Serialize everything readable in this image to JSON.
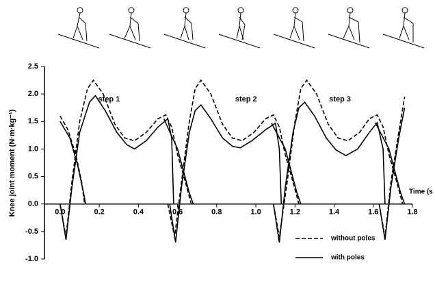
{
  "chart_data": {
    "type": "line",
    "x_label": "Time (s",
    "y_label": "Knee joint moment (N·m·kg⁻¹)",
    "annotations": [
      "step 1",
      "step 2",
      "step 3"
    ],
    "annotation_x": [
      0.25,
      0.95,
      1.43
    ],
    "annotation_y": [
      1.9,
      1.9,
      1.9
    ],
    "xlim": [
      -0.08,
      1.8
    ],
    "ylim": [
      -1,
      2.5
    ],
    "xticks": [
      {
        "value": 0,
        "label": "0.0"
      },
      0.2,
      0.4,
      0.6,
      0.8,
      {
        "value": 1,
        "label": "1.0"
      },
      1.2,
      1.4,
      1.6,
      1.8
    ],
    "yticks": [
      {
        "value": -1,
        "label": "-1.0"
      },
      -0.5,
      {
        "value": 0,
        "label": "0.0"
      },
      0.5,
      {
        "value": 1,
        "label": "1.0"
      },
      1.5,
      {
        "value": 2,
        "label": "2.0"
      },
      2.5
    ],
    "legend": "lower right",
    "series": [
      {
        "name": "without poles",
        "color": "#000",
        "dashed": true,
        "x": [
          0.0,
          0.04,
          0.08,
          0.11,
          0.125,
          null,
          0.0,
          0.03,
          0.06,
          0.1,
          0.14,
          0.17,
          0.22,
          0.28,
          0.33,
          0.38,
          0.44,
          0.5,
          0.54,
          0.57,
          0.6,
          0.64,
          0.67,
          null,
          0.55,
          0.585,
          0.62,
          0.66,
          0.69,
          0.72,
          0.77,
          0.83,
          0.88,
          0.93,
          0.99,
          1.05,
          1.09,
          1.12,
          1.15,
          1.19,
          1.22,
          null,
          1.09,
          1.12,
          1.16,
          1.2,
          1.23,
          1.26,
          1.31,
          1.37,
          1.42,
          1.47,
          1.53,
          1.58,
          1.62,
          1.65,
          1.68,
          1.72,
          1.75,
          null,
          1.63,
          1.66,
          1.69,
          1.73,
          1.76
        ],
        "values": [
          1.6,
          1.35,
          0.9,
          0.4,
          0,
          null,
          0,
          -0.6,
          0.4,
          1.5,
          2.1,
          2.25,
          2.0,
          1.45,
          1.2,
          1.15,
          1.3,
          1.55,
          1.62,
          1.4,
          0.9,
          0.4,
          0,
          null,
          0,
          -0.6,
          0.4,
          1.5,
          2.1,
          2.25,
          2.0,
          1.45,
          1.2,
          1.15,
          1.3,
          1.55,
          1.62,
          1.4,
          0.9,
          0.4,
          0,
          null,
          0,
          -0.6,
          0.4,
          1.5,
          2.1,
          2.25,
          2.0,
          1.45,
          1.2,
          1.15,
          1.3,
          1.55,
          1.62,
          1.4,
          0.9,
          0.4,
          0,
          null,
          0,
          -0.6,
          0.4,
          1.3,
          1.95
        ]
      },
      {
        "name": "with poles",
        "color": "#000",
        "dashed": false,
        "x": [
          0.0,
          0.05,
          0.09,
          0.12,
          0.13,
          null,
          0.0,
          0.03,
          0.06,
          0.1,
          0.15,
          0.18,
          0.23,
          0.29,
          0.34,
          0.38,
          0.44,
          0.5,
          0.55,
          0.57,
          0.58,
          null,
          0.53,
          0.6,
          0.63,
          0.66,
          0.68,
          null,
          0.56,
          0.59,
          0.62,
          0.66,
          0.69,
          0.72,
          0.77,
          0.83,
          0.88,
          0.92,
          0.98,
          1.05,
          1.1,
          1.12,
          1.13,
          null,
          1.08,
          1.15,
          1.18,
          1.21,
          1.23,
          null,
          1.09,
          1.12,
          1.15,
          1.19,
          1.22,
          1.25,
          1.3,
          1.36,
          1.41,
          1.46,
          1.52,
          1.58,
          1.62,
          1.65,
          1.66,
          null,
          1.61,
          1.68,
          1.71,
          1.74,
          1.76,
          null,
          1.63,
          1.66,
          1.69,
          1.73,
          1.76
        ],
        "values": [
          1.5,
          1.2,
          0.7,
          0.2,
          0,
          null,
          0,
          -0.65,
          0.3,
          1.3,
          1.85,
          1.97,
          1.7,
          1.3,
          1.08,
          1.0,
          1.15,
          1.4,
          1.55,
          1.2,
          0,
          null,
          1.55,
          1.0,
          0.6,
          0.2,
          0,
          null,
          0,
          -0.7,
          0.3,
          1.3,
          1.7,
          1.8,
          1.55,
          1.2,
          1.05,
          1.02,
          1.15,
          1.35,
          1.47,
          1.0,
          0,
          null,
          1.47,
          1.0,
          0.6,
          0.2,
          0,
          null,
          0,
          -0.7,
          0.3,
          1.3,
          1.75,
          1.85,
          1.6,
          1.2,
          0.98,
          0.88,
          1.0,
          1.3,
          1.48,
          1.0,
          0,
          null,
          1.48,
          1.0,
          0.6,
          0.2,
          0,
          null,
          0,
          -0.65,
          0.3,
          1.2,
          1.75
        ]
      }
    ]
  }
}
